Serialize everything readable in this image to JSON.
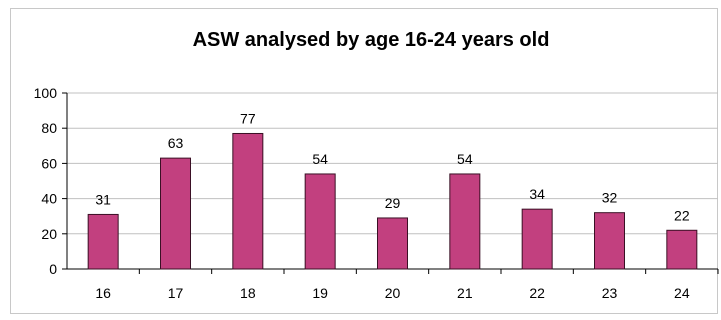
{
  "chart_data": {
    "type": "bar",
    "title": "ASW analysed by age 16-24 years old",
    "xlabel": "",
    "ylabel": "",
    "categories": [
      "16",
      "17",
      "18",
      "19",
      "20",
      "21",
      "22",
      "23",
      "24"
    ],
    "values": [
      31,
      63,
      77,
      54,
      29,
      54,
      34,
      32,
      22
    ],
    "ylim": [
      0,
      100
    ],
    "yticks": [
      "0",
      "20",
      "40",
      "60",
      "80",
      "100"
    ],
    "grid": true,
    "legend": "none",
    "bar_color": "#c2407f",
    "bar_edge_color": "#3a1025",
    "grid_color": "#c0c0c0"
  }
}
